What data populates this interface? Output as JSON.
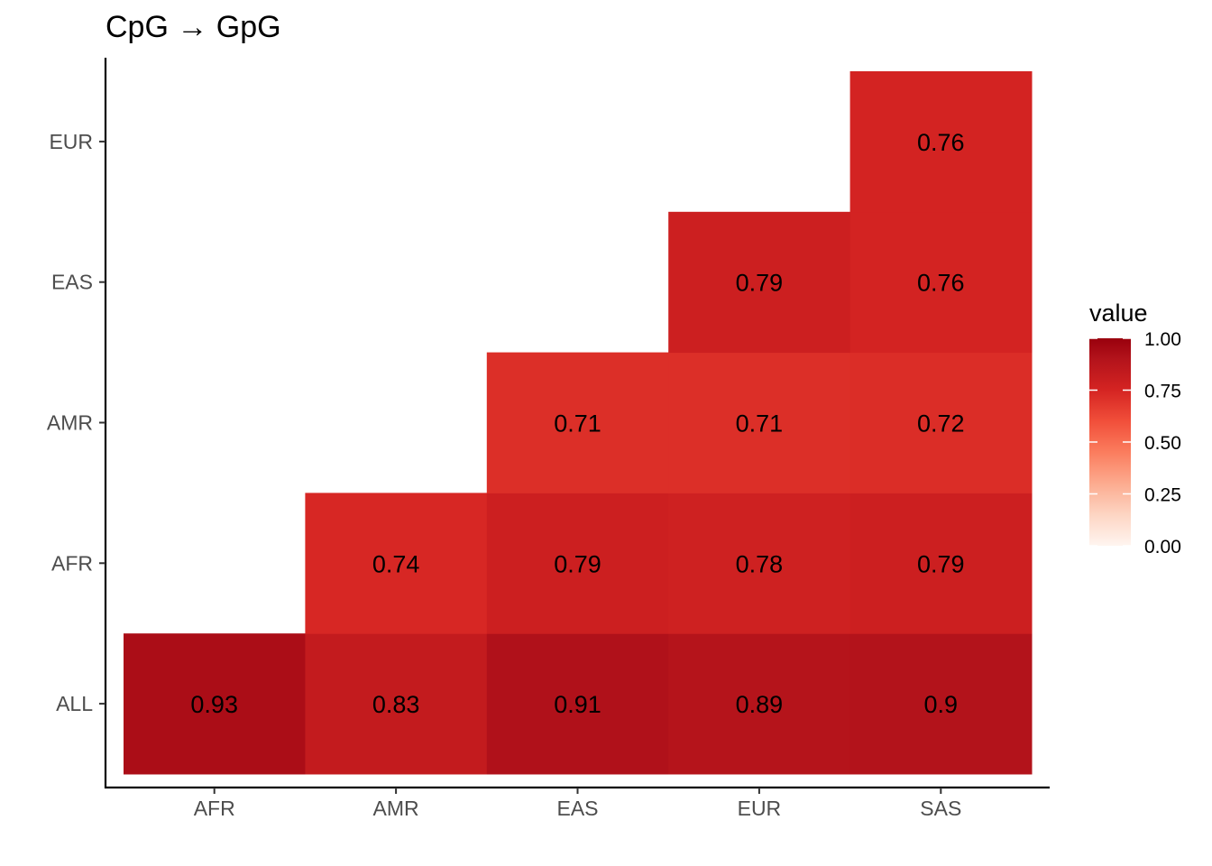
{
  "chart_data": {
    "type": "heatmap",
    "title": "CpG → GpG",
    "xlabel": "",
    "ylabel": "",
    "x_categories": [
      "AFR",
      "AMR",
      "EAS",
      "EUR",
      "SAS"
    ],
    "y_categories": [
      "ALL",
      "AFR",
      "AMR",
      "EAS",
      "EUR"
    ],
    "cells": [
      {
        "x": "AFR",
        "y": "ALL",
        "value": 0.93,
        "label": "0.93"
      },
      {
        "x": "AMR",
        "y": "ALL",
        "value": 0.83,
        "label": "0.83"
      },
      {
        "x": "EAS",
        "y": "ALL",
        "value": 0.91,
        "label": "0.91"
      },
      {
        "x": "EUR",
        "y": "ALL",
        "value": 0.89,
        "label": "0.89"
      },
      {
        "x": "SAS",
        "y": "ALL",
        "value": 0.9,
        "label": "0.9"
      },
      {
        "x": "AMR",
        "y": "AFR",
        "value": 0.74,
        "label": "0.74"
      },
      {
        "x": "EAS",
        "y": "AFR",
        "value": 0.79,
        "label": "0.79"
      },
      {
        "x": "EUR",
        "y": "AFR",
        "value": 0.78,
        "label": "0.78"
      },
      {
        "x": "SAS",
        "y": "AFR",
        "value": 0.79,
        "label": "0.79"
      },
      {
        "x": "EAS",
        "y": "AMR",
        "value": 0.71,
        "label": "0.71"
      },
      {
        "x": "EUR",
        "y": "AMR",
        "value": 0.71,
        "label": "0.71"
      },
      {
        "x": "SAS",
        "y": "AMR",
        "value": 0.72,
        "label": "0.72"
      },
      {
        "x": "EUR",
        "y": "EAS",
        "value": 0.79,
        "label": "0.79"
      },
      {
        "x": "SAS",
        "y": "EAS",
        "value": 0.76,
        "label": "0.76"
      },
      {
        "x": "SAS",
        "y": "EUR",
        "value": 0.76,
        "label": "0.76"
      }
    ],
    "legend": {
      "title": "value",
      "placement": "right",
      "range": [
        0,
        1
      ],
      "ticks": [
        {
          "value": 1.0,
          "label": "1.00"
        },
        {
          "value": 0.75,
          "label": "0.75"
        },
        {
          "value": 0.5,
          "label": "0.50"
        },
        {
          "value": 0.25,
          "label": "0.25"
        },
        {
          "value": 0.0,
          "label": "0.00"
        }
      ],
      "color_low": "#fee0d2",
      "color_high": "#99000d"
    },
    "grid": false
  }
}
